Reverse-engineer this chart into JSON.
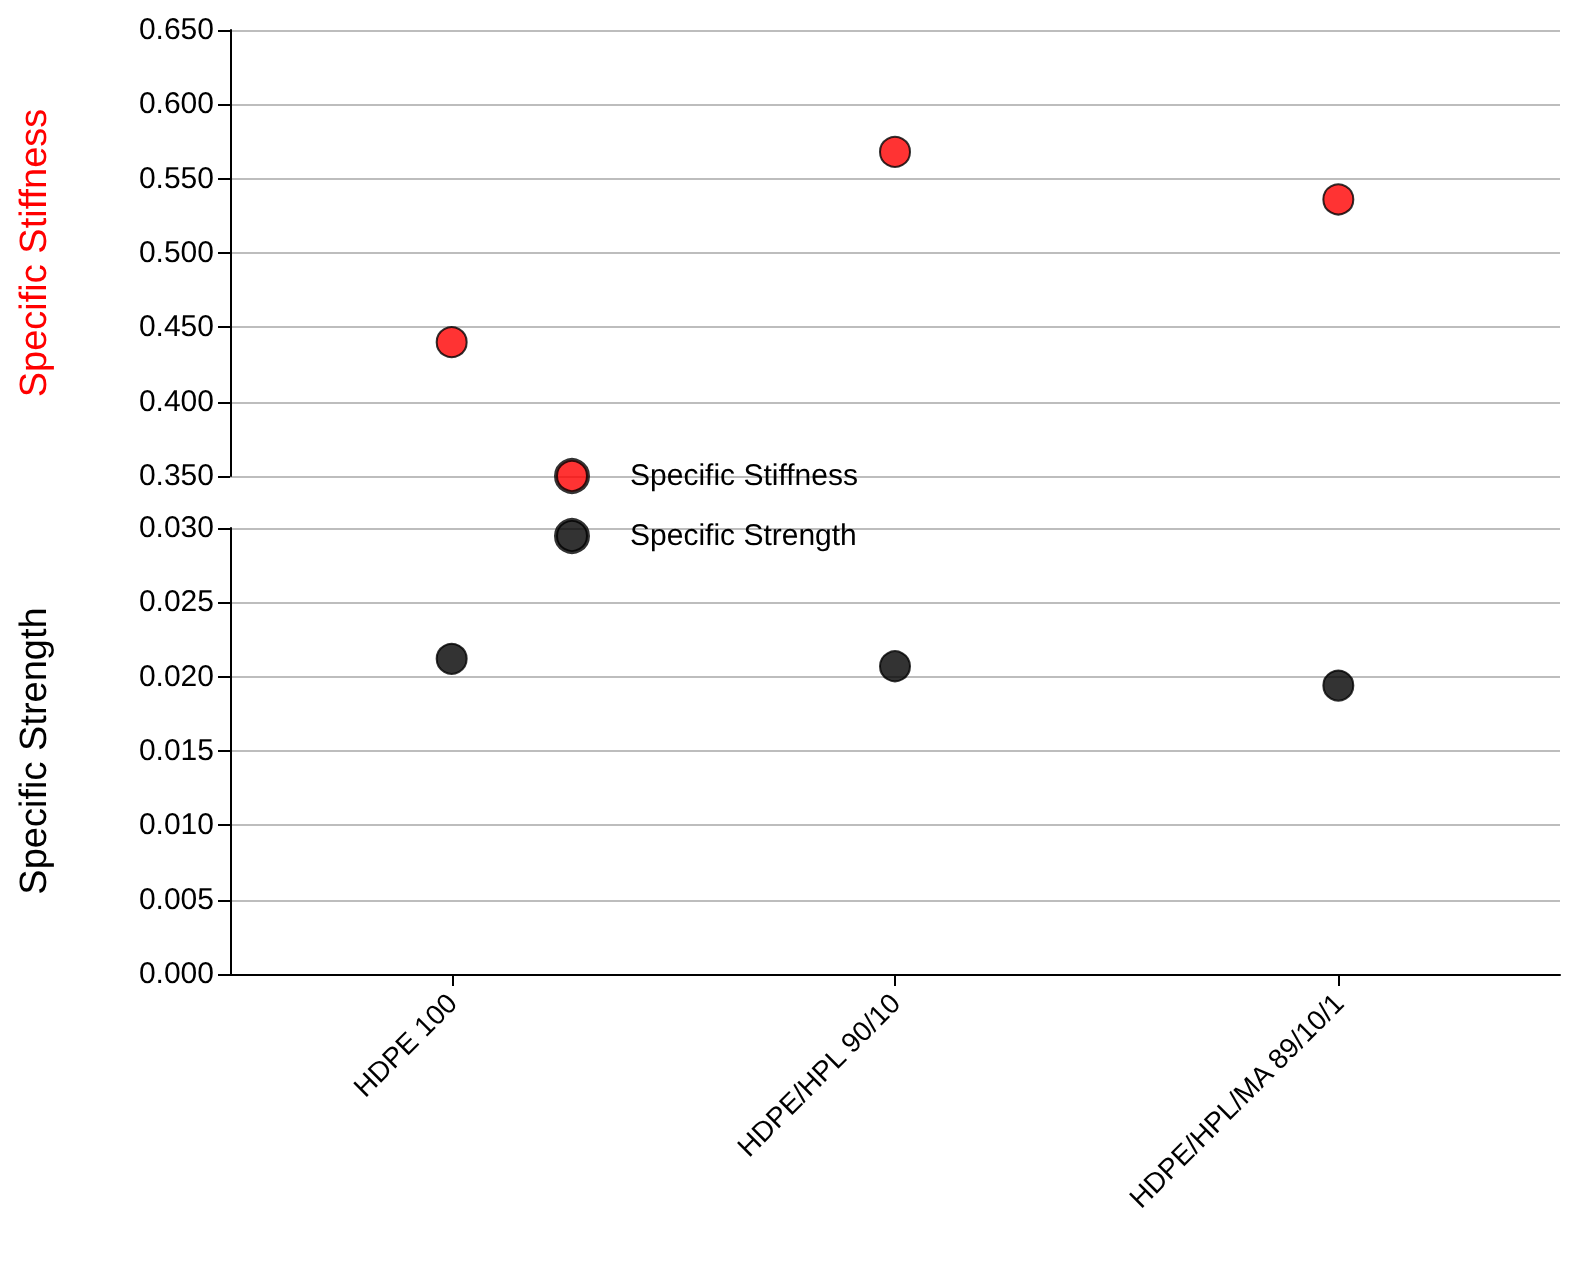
{
  "chart_data": [
    {
      "type": "scatter",
      "ylabel": "Specific Stiffness",
      "categories": [
        null,
        null,
        null
      ],
      "series": [
        {
          "name": "Specific Stiffness",
          "color": "#ff0000",
          "values": [
            0.44,
            0.568,
            0.536
          ]
        }
      ],
      "ylim": [
        0.35,
        0.65
      ],
      "yticks": [
        {
          "value": 0.35,
          "label": "0.350"
        },
        {
          "value": 0.4,
          "label": "0.400"
        },
        {
          "value": 0.45,
          "label": "0.450"
        },
        {
          "value": 0.5,
          "label": "0.500"
        },
        {
          "value": 0.55,
          "label": "0.550"
        },
        {
          "value": 0.6,
          "label": "0.600"
        },
        {
          "value": 0.65,
          "label": "0.650"
        }
      ],
      "grid": "y",
      "legend": "bottom left",
      "marker": "circle",
      "tick_labels": "y"
    },
    {
      "type": "scatter",
      "ylabel": "Specific Strength",
      "categories": [
        "HDPE 100",
        "HDPE/HPL 90/10",
        "HDPE/HPL/MA 89/10/1"
      ],
      "series": [
        {
          "name": "Specific Strength",
          "color": "#000000",
          "values": [
            0.0212,
            0.0207,
            0.0194
          ]
        }
      ],
      "ylim": [
        0,
        0.03
      ],
      "yticks": [
        {
          "value": 0,
          "label": "0.000"
        },
        {
          "value": 0.005,
          "label": "0.005"
        },
        {
          "value": 0.01,
          "label": "0.010"
        },
        {
          "value": 0.015,
          "label": "0.015"
        },
        {
          "value": 0.02,
          "label": "0.020"
        },
        {
          "value": 0.025,
          "label": "0.025"
        },
        {
          "value": 0.03,
          "label": "0.030"
        }
      ],
      "grid": "y",
      "legend": "top left",
      "marker": "circle"
    }
  ]
}
